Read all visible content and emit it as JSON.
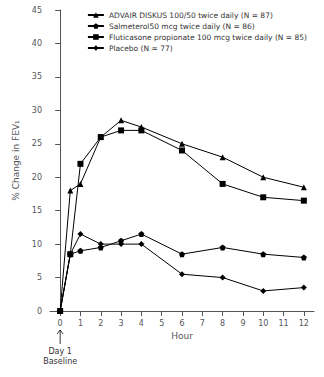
{
  "chart_data": {
    "type": "line",
    "x": [
      0,
      0.5,
      1,
      2,
      3,
      4,
      6,
      8,
      10,
      12
    ],
    "series": [
      {
        "name": "ADVAIR DISKUS 100/50 twice daily (N = 87)",
        "color": "#000000",
        "marker": "triangle",
        "values": [
          0,
          18,
          19,
          26,
          28.5,
          27.5,
          25,
          23,
          20,
          18.5
        ]
      },
      {
        "name": "Salmeterol50 mcg twice daily (N = 86)",
        "color": "#000000",
        "marker": "pentagon",
        "values": [
          0,
          8.5,
          9,
          9.5,
          10.5,
          11.5,
          8.5,
          9.5,
          8.5,
          8
        ]
      },
      {
        "name": "Fluticasone propionate 100 mcg twice daily (N = 85)",
        "color": "#000000",
        "marker": "square",
        "values": [
          0,
          8.5,
          22,
          26,
          27,
          27,
          24,
          19,
          17,
          16.5
        ]
      },
      {
        "name": "Placebo (N = 77)",
        "color": "#000000",
        "marker": "diamond",
        "values": [
          0,
          8.5,
          11.5,
          10,
          10,
          10,
          5.5,
          5,
          3,
          3.5
        ]
      }
    ],
    "xlabel": "Hour",
    "ylabel": "% Change in FEV₁",
    "xlim": [
      -0.5,
      12.5
    ],
    "xticks": [
      0,
      1,
      2,
      3,
      4,
      5,
      6,
      7,
      8,
      9,
      10,
      11,
      12
    ],
    "ylim": [
      0,
      45
    ],
    "yticks": [
      0,
      5,
      10,
      15,
      20,
      25,
      30,
      35,
      40,
      45
    ],
    "grid": false,
    "legend": "upper right",
    "annotations": [
      {
        "text": "Day 1\nBaseline",
        "x": 0
      }
    ]
  }
}
